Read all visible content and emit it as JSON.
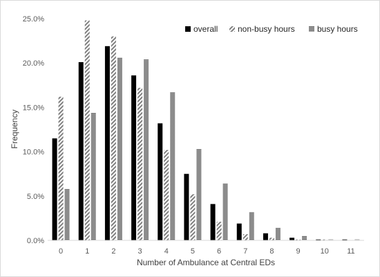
{
  "chart_data": {
    "type": "bar",
    "xlabel": "Number of Ambulance at Central EDs",
    "ylabel": "Frequency",
    "ylim": [
      0,
      25
    ],
    "ytick_values": [
      0,
      5,
      10,
      15,
      20,
      25
    ],
    "ytick_labels": [
      "0.0%",
      "5.0%",
      "10.0%",
      "15.0%",
      "20.0%",
      "25.0%"
    ],
    "categories": [
      "0",
      "1",
      "2",
      "3",
      "4",
      "5",
      "6",
      "7",
      "8",
      "9",
      "10",
      "11"
    ],
    "grid": false,
    "legend_position": "top-right",
    "series": [
      {
        "name": "overall",
        "color": "#000000",
        "pattern": "solid",
        "values": [
          11.5,
          20.1,
          21.9,
          18.6,
          13.2,
          7.5,
          4.1,
          1.9,
          0.8,
          0.3,
          0.1,
          0.1
        ]
      },
      {
        "name": "non-busy hours",
        "color": "#7f7f7f",
        "pattern": "diagonal-hatch",
        "values": [
          16.2,
          24.8,
          23.0,
          17.2,
          10.2,
          5.2,
          2.1,
          0.7,
          0.3,
          0.1,
          0.1,
          0.0
        ]
      },
      {
        "name": "busy hours",
        "color": "#808080",
        "pattern": "horizontal-lines",
        "values": [
          5.8,
          14.4,
          20.6,
          20.4,
          16.7,
          10.3,
          6.4,
          3.2,
          1.4,
          0.5,
          0.1,
          0.1
        ]
      }
    ]
  }
}
